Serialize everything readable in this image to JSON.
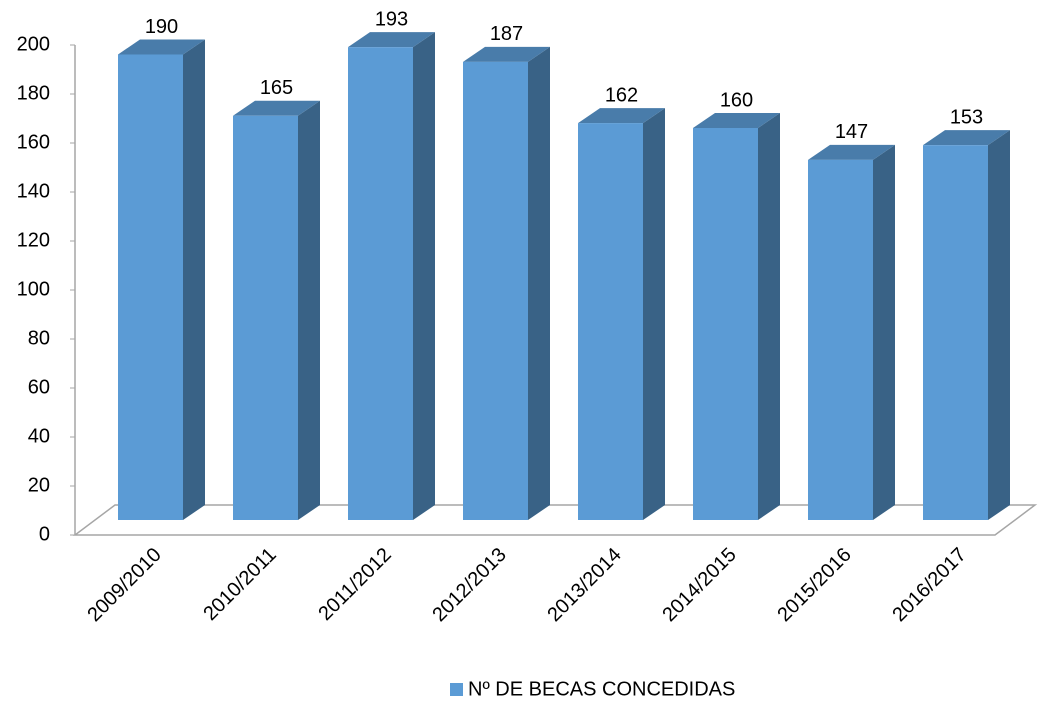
{
  "chart_data": {
    "type": "bar3d",
    "categories": [
      "2009/2010",
      "2010/2011",
      "2011/2012",
      "2012/2013",
      "2013/2014",
      "2014/2015",
      "2015/2016",
      "2016/2017"
    ],
    "series": [
      {
        "name": "Nº DE BECAS CONCEDIDAS",
        "color": "#5b9bd5",
        "values": [
          190,
          165,
          193,
          187,
          162,
          160,
          147,
          153
        ]
      }
    ],
    "ylim": [
      0,
      200
    ],
    "yticks": [
      0,
      20,
      40,
      60,
      80,
      100,
      120,
      140,
      160,
      180,
      200
    ],
    "legend": "bottom"
  }
}
